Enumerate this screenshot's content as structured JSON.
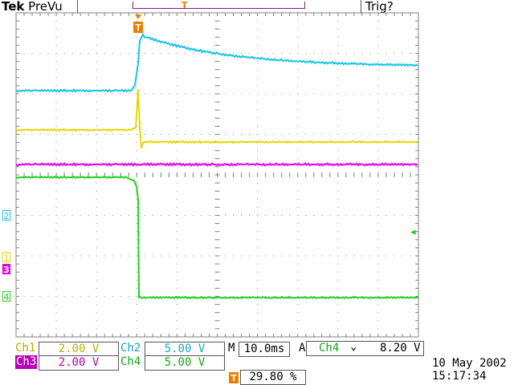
{
  "header": {
    "brand": "Tek",
    "mode": "PreVu",
    "trigger_state": "Trig?"
  },
  "channels": [
    {
      "id": "ch1",
      "label": "Ch1",
      "scale": "2.00 V",
      "marker": "1",
      "color": "#e6d800"
    },
    {
      "id": "ch2",
      "label": "Ch2",
      "scale": "5.00 V",
      "marker": "2",
      "color": "#14c6e6"
    },
    {
      "id": "ch3",
      "label": "Ch3",
      "scale": "2.00 V",
      "marker": "3",
      "color": "#e600e6"
    },
    {
      "id": "ch4",
      "label": "Ch4",
      "scale": "5.00 V",
      "marker": "4",
      "color": "#1ed21e"
    }
  ],
  "timebase": {
    "prefix": "M",
    "value": "10.0ms"
  },
  "trigger": {
    "mode": "A",
    "source": "Ch4",
    "slope_icon": "falling-edge-icon",
    "slope_glyph": "⌄",
    "level": "8.20 V",
    "marker": "T",
    "position": "29.80 %"
  },
  "datetime": {
    "date": "10 May 2002",
    "time": "15:17:34"
  },
  "colors": {
    "grid": "#808080",
    "trigger": "#f07c00",
    "ch4_arrow": "#1ed21e"
  }
}
